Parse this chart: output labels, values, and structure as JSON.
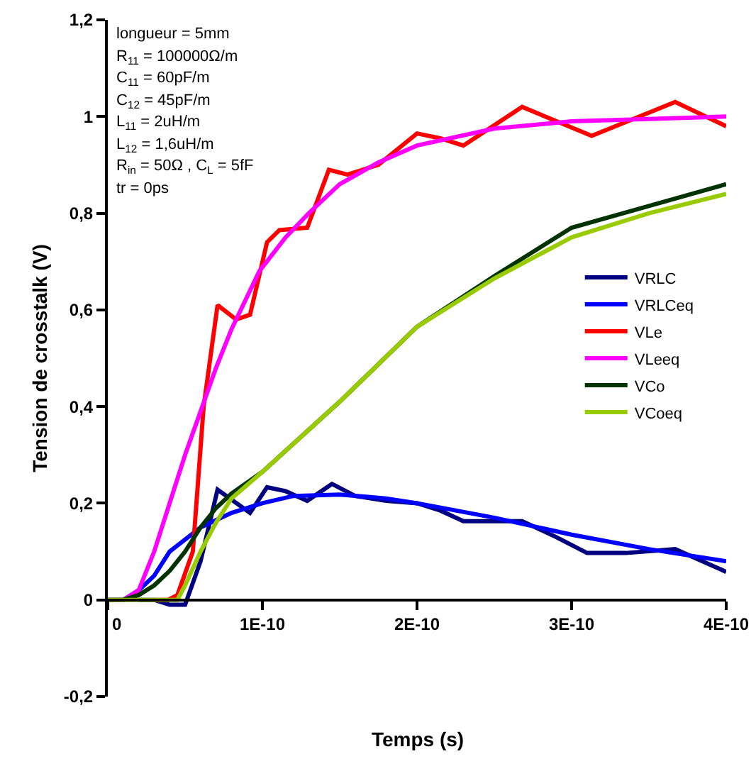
{
  "chart_data": {
    "type": "line",
    "xlabel": "Temps (s)",
    "ylabel": "Tension de crosstalk (V)",
    "annotations": [
      "longueur = 5mm",
      "R$_{11}$ = 100000Ω/m",
      "C$_{11}$ = 60pF/m",
      "C$_{12}$ = 45pF/m",
      "L$_{11}$ = 2uH/m",
      "L$_{12}$ = 1,6uH/m",
      "R$_{in}$ = 50Ω , C$_{L}$ = 5fF",
      "tr = 0ps"
    ],
    "xlim": [
      0,
      4e-10
    ],
    "xticks": [
      0,
      {
        "value": 1e-10,
        "label": "1E-10"
      },
      {
        "value": 2e-10,
        "label": "2E-10"
      },
      {
        "value": 3e-10,
        "label": "3E-10"
      },
      {
        "value": 4e-10,
        "label": "4E-10"
      }
    ],
    "ylim": [
      -0.2,
      1.2
    ],
    "yticks": [
      {
        "value": -0.2,
        "label": "-0,2"
      },
      0,
      {
        "value": 0.2,
        "label": "0,2"
      },
      {
        "value": 0.4,
        "label": "0,4"
      },
      {
        "value": 0.6,
        "label": "0,6"
      },
      {
        "value": 0.8,
        "label": "0,8"
      },
      1,
      {
        "value": 1.2,
        "label": "1,2"
      }
    ],
    "grid": false,
    "legend": "right",
    "marker": "none",
    "line_style": "solid",
    "series": [
      {
        "name": "VRLC",
        "color": "#000080",
        "x": [
          2e-11,
          3e-11,
          4e-11,
          5e-11,
          6e-11,
          7.1e-11,
          9.2e-11,
          1.03e-10,
          1.15e-10,
          1.29e-10,
          1.45e-10,
          1.6e-10,
          1.8e-10,
          2e-10,
          2.15e-10,
          2.3e-10,
          2.68e-10,
          2.9e-10,
          3.1e-10,
          3.35e-10,
          3.67e-10,
          4e-10
        ],
        "values": [
          0,
          0,
          -0.01,
          -0.01,
          0.08,
          0.228,
          0.18,
          0.233,
          0.225,
          0.205,
          0.24,
          0.215,
          0.205,
          0.2,
          0.185,
          0.163,
          0.163,
          0.13,
          0.097,
          0.097,
          0.105,
          0.058
        ]
      },
      {
        "name": "VRLCeq",
        "color": "#0000ff",
        "x": [
          0,
          1e-11,
          2e-11,
          3e-11,
          4e-11,
          5e-11,
          6e-11,
          8e-11,
          1e-10,
          1.2e-10,
          1.5e-10,
          1.8e-10,
          2e-10,
          2.5e-10,
          3e-10,
          3.5e-10,
          4e-10
        ],
        "values": [
          0,
          0,
          0.02,
          0.05,
          0.1,
          0.125,
          0.15,
          0.18,
          0.2,
          0.215,
          0.218,
          0.21,
          0.2,
          0.17,
          0.135,
          0.105,
          0.08
        ]
      },
      {
        "name": "VLe",
        "color": "#ff0000",
        "x": [
          3e-11,
          3.9e-11,
          4.5e-11,
          5.5e-11,
          6.2e-11,
          7.1e-11,
          8.3e-11,
          9.2e-11,
          1.03e-10,
          1.11e-10,
          1.29e-10,
          1.43e-10,
          1.55e-10,
          1.75e-10,
          2e-10,
          2.15e-10,
          2.3e-10,
          2.68e-10,
          3.13e-10,
          3.67e-10,
          4e-10
        ],
        "values": [
          0,
          0,
          0.01,
          0.1,
          0.4,
          0.61,
          0.58,
          0.59,
          0.74,
          0.765,
          0.77,
          0.89,
          0.88,
          0.9,
          0.965,
          0.955,
          0.94,
          1.02,
          0.96,
          1.03,
          0.98
        ]
      },
      {
        "name": "VLeeq",
        "color": "#ff00ff",
        "x": [
          0,
          1e-11,
          2e-11,
          3e-11,
          4e-11,
          5e-11,
          6e-11,
          7e-11,
          8e-11,
          9.8e-11,
          1.15e-10,
          1.3e-10,
          1.5e-10,
          1.75e-10,
          2e-10,
          2.5e-10,
          3e-10,
          3.5e-10,
          4e-10
        ],
        "values": [
          0,
          0,
          0.02,
          0.1,
          0.2,
          0.3,
          0.39,
          0.48,
          0.56,
          0.68,
          0.75,
          0.8,
          0.86,
          0.905,
          0.94,
          0.975,
          0.99,
          0.995,
          1
        ]
      },
      {
        "name": "VCo",
        "color": "#003300",
        "x": [
          0,
          1e-11,
          2e-11,
          3e-11,
          4e-11,
          5e-11,
          6e-11,
          7e-11,
          8e-11,
          1e-10,
          1.5e-10,
          2e-10,
          2.5e-10,
          3e-10,
          3.5e-10,
          4e-10
        ],
        "values": [
          0,
          0,
          0.01,
          0.03,
          0.06,
          0.1,
          0.15,
          0.19,
          0.22,
          0.265,
          0.41,
          0.565,
          0.67,
          0.77,
          0.815,
          0.86
        ]
      },
      {
        "name": "VCoeq",
        "color": "#99cc00",
        "x": [
          0,
          1e-11,
          2e-11,
          3e-11,
          4.5e-11,
          5e-11,
          6e-11,
          7e-11,
          8e-11,
          1e-10,
          1.5e-10,
          2e-10,
          2.5e-10,
          3e-10,
          3.5e-10,
          4e-10
        ],
        "values": [
          0,
          0,
          0,
          0,
          0,
          0.03,
          0.1,
          0.16,
          0.21,
          0.265,
          0.41,
          0.565,
          0.665,
          0.75,
          0.8,
          0.84
        ]
      }
    ]
  }
}
